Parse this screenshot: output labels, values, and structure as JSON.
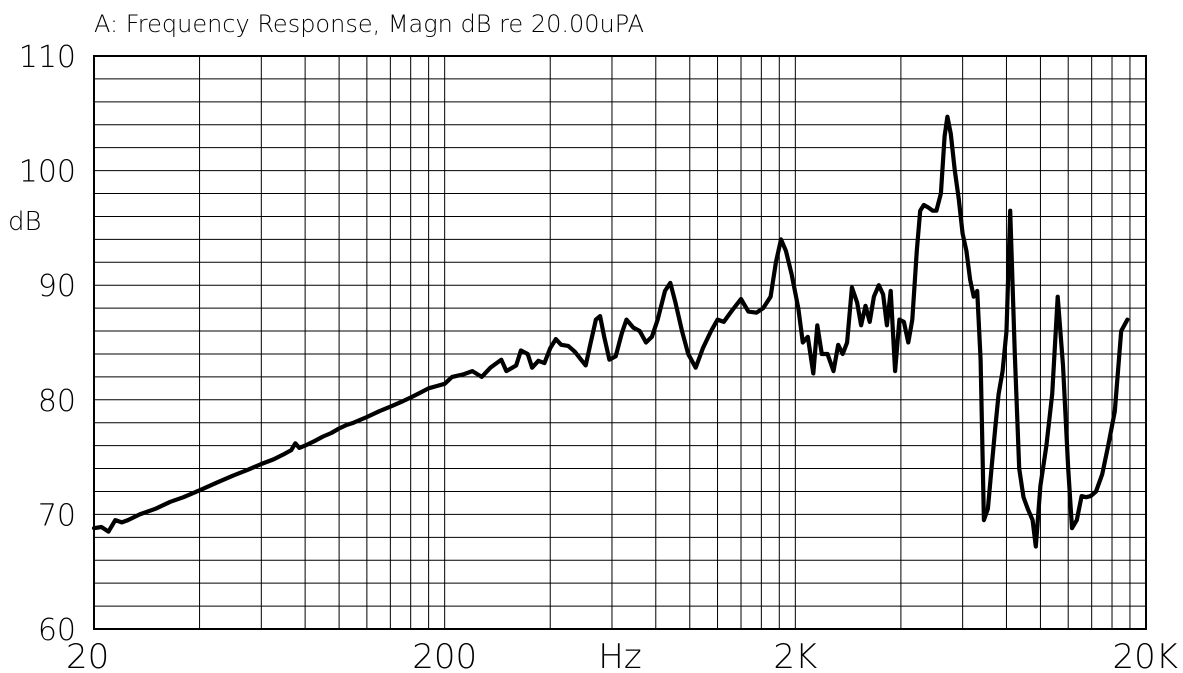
{
  "chart_data": {
    "type": "line",
    "title": "A: Frequency Response, Magn dB re 20.00uPA",
    "xlabel": "Hz",
    "ylabel": "dB",
    "x_scale": "log",
    "xlim": [
      20,
      20000
    ],
    "ylim": [
      60,
      110
    ],
    "y_ticks": [
      "60",
      "70",
      "80",
      "90",
      "100",
      "110"
    ],
    "x_ticks": [
      {
        "label": "20",
        "value": 20
      },
      {
        "label": "200",
        "value": 200
      },
      {
        "label": "2K",
        "value": 2000
      },
      {
        "label": "20K",
        "value": 20000
      }
    ],
    "grid": true,
    "legend": "none",
    "series": [
      {
        "color": "#000000",
        "points": [
          [
            20,
            68.8
          ],
          [
            21,
            68.9
          ],
          [
            22,
            68.5
          ],
          [
            23,
            69.5
          ],
          [
            24,
            69.3
          ],
          [
            25,
            69.5
          ],
          [
            27,
            70.0
          ],
          [
            30,
            70.5
          ],
          [
            33,
            71.1
          ],
          [
            36,
            71.5
          ],
          [
            40,
            72.1
          ],
          [
            45,
            72.8
          ],
          [
            50,
            73.4
          ],
          [
            55,
            73.9
          ],
          [
            60,
            74.4
          ],
          [
            65,
            74.8
          ],
          [
            70,
            75.3
          ],
          [
            73,
            75.6
          ],
          [
            75,
            76.2
          ],
          [
            77,
            75.8
          ],
          [
            80,
            76.0
          ],
          [
            85,
            76.4
          ],
          [
            90,
            76.8
          ],
          [
            95,
            77.1
          ],
          [
            100,
            77.5
          ],
          [
            105,
            77.8
          ],
          [
            110,
            78.0
          ],
          [
            120,
            78.5
          ],
          [
            130,
            79.0
          ],
          [
            140,
            79.4
          ],
          [
            150,
            79.8
          ],
          [
            160,
            80.2
          ],
          [
            170,
            80.6
          ],
          [
            180,
            81.0
          ],
          [
            190,
            81.2
          ],
          [
            200,
            81.4
          ],
          [
            210,
            82.0
          ],
          [
            225,
            82.2
          ],
          [
            240,
            82.5
          ],
          [
            255,
            82.0
          ],
          [
            270,
            82.8
          ],
          [
            290,
            83.5
          ],
          [
            300,
            82.5
          ],
          [
            320,
            83.0
          ],
          [
            330,
            84.3
          ],
          [
            345,
            84.0
          ],
          [
            355,
            82.8
          ],
          [
            370,
            83.4
          ],
          [
            385,
            83.2
          ],
          [
            400,
            84.5
          ],
          [
            415,
            85.3
          ],
          [
            430,
            84.8
          ],
          [
            450,
            84.7
          ],
          [
            470,
            84.2
          ],
          [
            490,
            83.5
          ],
          [
            505,
            83.0
          ],
          [
            520,
            84.8
          ],
          [
            540,
            87.0
          ],
          [
            555,
            87.3
          ],
          [
            570,
            85.5
          ],
          [
            590,
            83.5
          ],
          [
            615,
            83.8
          ],
          [
            640,
            85.8
          ],
          [
            660,
            87.0
          ],
          [
            690,
            86.3
          ],
          [
            720,
            86.0
          ],
          [
            750,
            85.0
          ],
          [
            780,
            85.5
          ],
          [
            810,
            87.0
          ],
          [
            850,
            89.5
          ],
          [
            880,
            90.2
          ],
          [
            910,
            88.5
          ],
          [
            950,
            86.0
          ],
          [
            990,
            84.0
          ],
          [
            1040,
            82.8
          ],
          [
            1090,
            84.5
          ],
          [
            1150,
            86.0
          ],
          [
            1200,
            87.0
          ],
          [
            1250,
            86.8
          ],
          [
            1320,
            87.8
          ],
          [
            1400,
            88.8
          ],
          [
            1470,
            87.7
          ],
          [
            1550,
            87.6
          ],
          [
            1620,
            88.0
          ],
          [
            1700,
            89.0
          ],
          [
            1760,
            92.0
          ],
          [
            1820,
            94.0
          ],
          [
            1880,
            93.0
          ],
          [
            1950,
            91.0
          ],
          [
            2040,
            88.0
          ],
          [
            2100,
            85.0
          ],
          [
            2170,
            85.5
          ],
          [
            2250,
            82.3
          ],
          [
            2310,
            86.5
          ],
          [
            2380,
            84.0
          ],
          [
            2470,
            84.0
          ],
          [
            2570,
            82.5
          ],
          [
            2650,
            84.8
          ],
          [
            2730,
            84.0
          ],
          [
            2810,
            85.0
          ],
          [
            2900,
            89.8
          ],
          [
            3000,
            88.5
          ],
          [
            3080,
            86.5
          ],
          [
            3170,
            88.2
          ],
          [
            3260,
            86.8
          ],
          [
            3350,
            89.0
          ],
          [
            3460,
            90.0
          ],
          [
            3560,
            89.2
          ],
          [
            3650,
            86.5
          ],
          [
            3740,
            89.5
          ],
          [
            3850,
            82.5
          ],
          [
            3960,
            87.0
          ],
          [
            4080,
            86.8
          ],
          [
            4200,
            85.0
          ],
          [
            4310,
            87.0
          ],
          [
            4440,
            93.0
          ],
          [
            4540,
            96.5
          ],
          [
            4650,
            97.0
          ],
          [
            4780,
            96.8
          ],
          [
            4930,
            96.5
          ],
          [
            5050,
            96.5
          ],
          [
            5200,
            98.0
          ],
          [
            5330,
            103.0
          ],
          [
            5430,
            104.7
          ],
          [
            5550,
            103.2
          ],
          [
            5700,
            100.0
          ],
          [
            5850,
            97.5
          ],
          [
            6000,
            94.5
          ],
          [
            6150,
            93.0
          ],
          [
            6300,
            90.5
          ],
          [
            6450,
            89.0
          ],
          [
            6600,
            89.5
          ],
          [
            6750,
            83.5
          ],
          [
            6900,
            69.5
          ],
          [
            7080,
            70.5
          ],
          [
            7250,
            74.0
          ],
          [
            7430,
            77.5
          ],
          [
            7600,
            80.5
          ],
          [
            7800,
            82.5
          ],
          [
            8000,
            86.0
          ],
          [
            8200,
            96.5
          ],
          [
            8450,
            84.0
          ],
          [
            8700,
            74.0
          ],
          [
            8950,
            71.5
          ],
          [
            9200,
            70.5
          ],
          [
            9500,
            69.5
          ],
          [
            9700,
            67.2
          ],
          [
            10000,
            72.5
          ],
          [
            10400,
            76.0
          ],
          [
            10800,
            80.5
          ],
          [
            11200,
            89.0
          ],
          [
            11600,
            83.0
          ],
          [
            12000,
            74.0
          ],
          [
            12300,
            68.8
          ],
          [
            12700,
            69.5
          ],
          [
            13100,
            71.6
          ],
          [
            13500,
            71.5
          ],
          [
            13900,
            71.6
          ],
          [
            14400,
            72.0
          ],
          [
            15000,
            73.5
          ],
          [
            15600,
            76.0
          ],
          [
            16300,
            79.0
          ],
          [
            17000,
            86.0
          ],
          [
            17700,
            87.0
          ]
        ]
      }
    ]
  }
}
